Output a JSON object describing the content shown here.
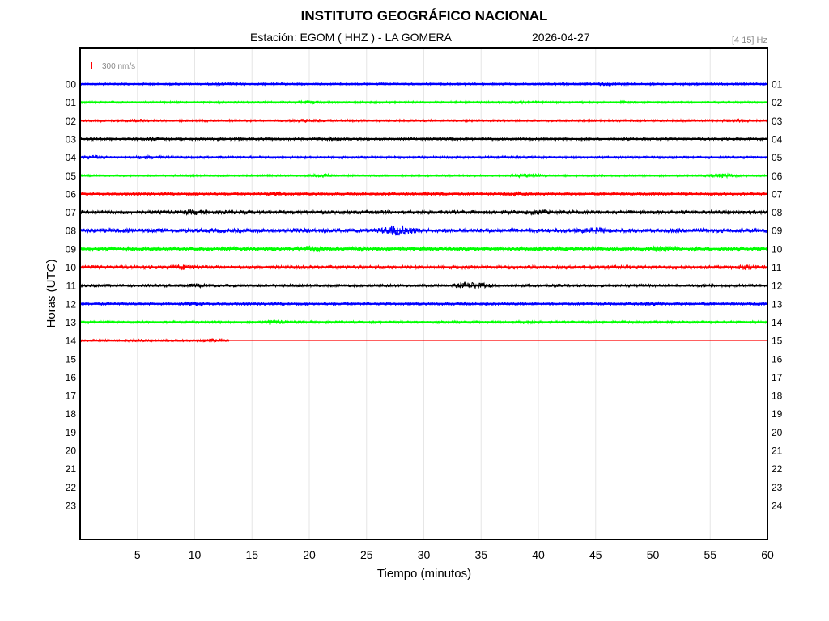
{
  "chart_data": {
    "type": "helicorder",
    "title": "INSTITUTO GEOGRÁFICO NACIONAL",
    "station_label": "Estación:  EGOM ( HHZ ) - LA GOMERA",
    "date": "2026-04-27",
    "band": "[4 15] Hz",
    "scale_label": "300 nm/s",
    "scale_color": "#ff0000",
    "xlabel": "Tiempo (minutos)",
    "ylabel": "Horas (UTC)",
    "xlim": [
      0,
      60
    ],
    "xticks": [
      5,
      10,
      15,
      20,
      25,
      30,
      35,
      40,
      45,
      50,
      55,
      60
    ],
    "left_hours": [
      "00",
      "01",
      "02",
      "03",
      "04",
      "05",
      "06",
      "07",
      "08",
      "09",
      "10",
      "11",
      "12",
      "13",
      "14",
      "15",
      "16",
      "17",
      "18",
      "19",
      "20",
      "21",
      "22",
      "23"
    ],
    "right_hours": [
      "01",
      "02",
      "03",
      "04",
      "05",
      "06",
      "07",
      "08",
      "09",
      "10",
      "11",
      "12",
      "13",
      "14",
      "15",
      "16",
      "17",
      "18",
      "19",
      "20",
      "21",
      "22",
      "23",
      "24"
    ],
    "color_cycle": [
      "#0000ff",
      "#00ff00",
      "#ff0000",
      "#000000"
    ],
    "traces": [
      {
        "hour": "00",
        "color": "#0000ff",
        "end_minute": 60,
        "noise_level": 2.0,
        "bursts": [
          {
            "minute": 13,
            "amp": 2.0
          },
          {
            "minute": 46,
            "amp": 2.5
          }
        ]
      },
      {
        "hour": "01",
        "color": "#00ff00",
        "end_minute": 60,
        "noise_level": 2.0,
        "bursts": [
          {
            "minute": 20,
            "amp": 2.5
          },
          {
            "minute": 39,
            "amp": 2.5
          }
        ]
      },
      {
        "hour": "02",
        "color": "#ff0000",
        "end_minute": 60,
        "noise_level": 2.0,
        "bursts": [
          {
            "minute": 5,
            "amp": 2.5
          },
          {
            "minute": 20,
            "amp": 3.0
          },
          {
            "minute": 57,
            "amp": 2.5
          }
        ]
      },
      {
        "hour": "03",
        "color": "#000000",
        "end_minute": 60,
        "noise_level": 2.3,
        "bursts": [
          {
            "minute": 6,
            "amp": 2.5
          },
          {
            "minute": 22,
            "amp": 2.5
          }
        ]
      },
      {
        "hour": "04",
        "color": "#0000ff",
        "end_minute": 60,
        "noise_level": 2.3,
        "bursts": [
          {
            "minute": 1,
            "amp": 3.0
          },
          {
            "minute": 6,
            "amp": 3.0
          }
        ]
      },
      {
        "hour": "05",
        "color": "#00ff00",
        "end_minute": 60,
        "noise_level": 1.8,
        "bursts": [
          {
            "minute": 21,
            "amp": 3.0
          },
          {
            "minute": 39,
            "amp": 3.5
          },
          {
            "minute": 56,
            "amp": 4.0
          }
        ]
      },
      {
        "hour": "06",
        "color": "#ff0000",
        "end_minute": 60,
        "noise_level": 2.5,
        "bursts": [
          {
            "minute": 17,
            "amp": 3.0
          },
          {
            "minute": 31,
            "amp": 3.0
          },
          {
            "minute": 38,
            "amp": 3.0
          }
        ]
      },
      {
        "hour": "07",
        "color": "#000000",
        "end_minute": 60,
        "noise_level": 3.5,
        "bursts": [
          {
            "minute": 10,
            "amp": 4.0
          },
          {
            "minute": 40,
            "amp": 4.0
          }
        ]
      },
      {
        "hour": "08",
        "color": "#0000ff",
        "end_minute": 60,
        "noise_level": 4.0,
        "bursts": [
          {
            "minute": 27.7,
            "amp": 9.0
          },
          {
            "minute": 45,
            "amp": 5.0
          }
        ]
      },
      {
        "hour": "09",
        "color": "#00ff00",
        "end_minute": 60,
        "noise_level": 4.0,
        "bursts": [
          {
            "minute": 20,
            "amp": 5.0
          },
          {
            "minute": 51,
            "amp": 5.0
          }
        ]
      },
      {
        "hour": "10",
        "color": "#ff0000",
        "end_minute": 60,
        "noise_level": 3.3,
        "bursts": [
          {
            "minute": 9,
            "amp": 4.0
          },
          {
            "minute": 58,
            "amp": 4.0
          }
        ]
      },
      {
        "hour": "11",
        "color": "#000000",
        "end_minute": 60,
        "noise_level": 2.5,
        "bursts": [
          {
            "minute": 34.2,
            "amp": 6.0
          },
          {
            "minute": 10,
            "amp": 3.0
          }
        ]
      },
      {
        "hour": "12",
        "color": "#0000ff",
        "end_minute": 60,
        "noise_level": 2.5,
        "bursts": [
          {
            "minute": 10,
            "amp": 3.0
          },
          {
            "minute": 50,
            "amp": 3.0
          }
        ]
      },
      {
        "hour": "13",
        "color": "#00ff00",
        "end_minute": 60,
        "noise_level": 2.3,
        "bursts": [
          {
            "minute": 17,
            "amp": 3.0
          },
          {
            "minute": 39,
            "amp": 2.5
          }
        ]
      },
      {
        "hour": "14",
        "color": "#ff0000",
        "end_minute": 13,
        "noise_level": 2.0,
        "bursts": [
          {
            "minute": 5,
            "amp": 2.0
          },
          {
            "minute": 11.5,
            "amp": 2.5
          }
        ]
      }
    ]
  }
}
